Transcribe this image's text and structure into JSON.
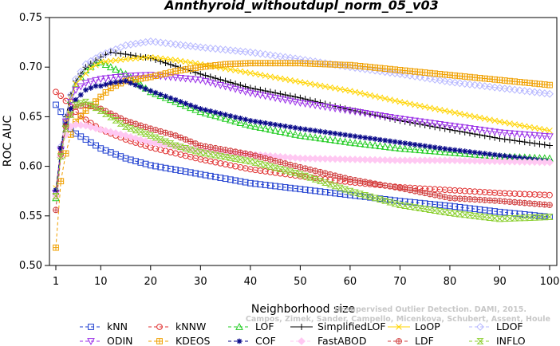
{
  "chart_data": {
    "type": "line",
    "title": "Annthyroid_withoutdupl_norm_05_v03",
    "xlabel": "Neighborhood size",
    "ylabel": "ROC AUC",
    "xlim": [
      1,
      100
    ],
    "ylim": [
      0.5,
      0.75
    ],
    "x_ticks": [
      1,
      10,
      20,
      30,
      40,
      50,
      60,
      70,
      80,
      90,
      100
    ],
    "y_ticks": [
      "0.50",
      "0.55",
      "0.60",
      "0.65",
      "0.70",
      "0.75"
    ],
    "grid": false,
    "legend_position": "bottom",
    "watermark": [
      "Unsupervised Outlier Detection. DAMI, 2015.",
      "Campos, Zimek, Sander, Campello, Micenkova, Schubert, Assent, Houle"
    ],
    "series": [
      {
        "name": "kNN",
        "color": "#1f3fd0",
        "marker": "square",
        "dashed": true,
        "anchors": [
          [
            1,
            0.662
          ],
          [
            2,
            0.655
          ],
          [
            3,
            0.645
          ],
          [
            4,
            0.638
          ],
          [
            5,
            0.633
          ],
          [
            7,
            0.627
          ],
          [
            10,
            0.618
          ],
          [
            15,
            0.608
          ],
          [
            20,
            0.601
          ],
          [
            30,
            0.592
          ],
          [
            40,
            0.583
          ],
          [
            50,
            0.577
          ],
          [
            60,
            0.571
          ],
          [
            70,
            0.565
          ],
          [
            80,
            0.56
          ],
          [
            90,
            0.554
          ],
          [
            100,
            0.549
          ]
        ]
      },
      {
        "name": "kNNW",
        "color": "#e03030",
        "marker": "circle",
        "dashed": true,
        "anchors": [
          [
            1,
            0.675
          ],
          [
            2,
            0.671
          ],
          [
            3,
            0.666
          ],
          [
            4,
            0.66
          ],
          [
            5,
            0.655
          ],
          [
            7,
            0.647
          ],
          [
            10,
            0.637
          ],
          [
            15,
            0.627
          ],
          [
            20,
            0.619
          ],
          [
            30,
            0.607
          ],
          [
            40,
            0.597
          ],
          [
            50,
            0.59
          ],
          [
            60,
            0.584
          ],
          [
            70,
            0.579
          ],
          [
            80,
            0.576
          ],
          [
            90,
            0.573
          ],
          [
            100,
            0.571
          ]
        ]
      },
      {
        "name": "LOF",
        "color": "#22cc22",
        "marker": "triangle-up",
        "dashed": true,
        "anchors": [
          [
            1,
            0.568
          ],
          [
            2,
            0.612
          ],
          [
            3,
            0.643
          ],
          [
            4,
            0.667
          ],
          [
            5,
            0.683
          ],
          [
            7,
            0.697
          ],
          [
            9,
            0.704
          ],
          [
            10,
            0.705
          ],
          [
            12,
            0.7
          ],
          [
            15,
            0.693
          ],
          [
            20,
            0.675
          ],
          [
            25,
            0.665
          ],
          [
            30,
            0.655
          ],
          [
            40,
            0.641
          ],
          [
            50,
            0.631
          ],
          [
            60,
            0.624
          ],
          [
            70,
            0.618
          ],
          [
            80,
            0.614
          ],
          [
            90,
            0.61
          ],
          [
            100,
            0.608
          ]
        ]
      },
      {
        "name": "SimplifiedLOF",
        "color": "#000000",
        "marker": "plus",
        "dashed": false,
        "anchors": [
          [
            1,
            0.572
          ],
          [
            2,
            0.62
          ],
          [
            3,
            0.65
          ],
          [
            4,
            0.672
          ],
          [
            5,
            0.686
          ],
          [
            7,
            0.7
          ],
          [
            10,
            0.71
          ],
          [
            12,
            0.715
          ],
          [
            15,
            0.713
          ],
          [
            20,
            0.709
          ],
          [
            25,
            0.701
          ],
          [
            30,
            0.693
          ],
          [
            40,
            0.679
          ],
          [
            50,
            0.669
          ],
          [
            60,
            0.657
          ],
          [
            70,
            0.646
          ],
          [
            80,
            0.637
          ],
          [
            90,
            0.628
          ],
          [
            100,
            0.621
          ]
        ]
      },
      {
        "name": "LoOP",
        "color": "#ffd400",
        "marker": "x",
        "dashed": false,
        "anchors": [
          [
            1,
            0.578
          ],
          [
            2,
            0.617
          ],
          [
            3,
            0.645
          ],
          [
            4,
            0.668
          ],
          [
            5,
            0.683
          ],
          [
            8,
            0.699
          ],
          [
            10,
            0.705
          ],
          [
            15,
            0.708
          ],
          [
            20,
            0.71
          ],
          [
            25,
            0.707
          ],
          [
            30,
            0.703
          ],
          [
            40,
            0.694
          ],
          [
            50,
            0.685
          ],
          [
            60,
            0.676
          ],
          [
            70,
            0.665
          ],
          [
            80,
            0.655
          ],
          [
            90,
            0.645
          ],
          [
            100,
            0.636
          ]
        ]
      },
      {
        "name": "LDOF",
        "color": "#b7b8ff",
        "marker": "diamond",
        "dashed": true,
        "anchors": [
          [
            1,
            0.575
          ],
          [
            2,
            0.62
          ],
          [
            3,
            0.65
          ],
          [
            4,
            0.672
          ],
          [
            5,
            0.688
          ],
          [
            7,
            0.703
          ],
          [
            10,
            0.712
          ],
          [
            15,
            0.722
          ],
          [
            20,
            0.726
          ],
          [
            30,
            0.72
          ],
          [
            40,
            0.715
          ],
          [
            50,
            0.708
          ],
          [
            60,
            0.7
          ],
          [
            70,
            0.693
          ],
          [
            80,
            0.685
          ],
          [
            90,
            0.679
          ],
          [
            100,
            0.673
          ]
        ]
      },
      {
        "name": "ODIN",
        "color": "#9b30e8",
        "marker": "triangle-down",
        "dashed": true,
        "anchors": [
          [
            1,
            0.573
          ],
          [
            2,
            0.616
          ],
          [
            3,
            0.645
          ],
          [
            4,
            0.665
          ],
          [
            5,
            0.677
          ],
          [
            7,
            0.684
          ],
          [
            10,
            0.688
          ],
          [
            15,
            0.691
          ],
          [
            20,
            0.692
          ],
          [
            30,
            0.687
          ],
          [
            40,
            0.674
          ],
          [
            50,
            0.664
          ],
          [
            60,
            0.656
          ],
          [
            70,
            0.648
          ],
          [
            80,
            0.641
          ],
          [
            90,
            0.634
          ],
          [
            100,
            0.63
          ]
        ]
      },
      {
        "name": "KDEOS",
        "color": "#f0a000",
        "marker": "square-cross",
        "dashed": true,
        "anchors": [
          [
            1,
            0.518
          ],
          [
            2,
            0.585
          ],
          [
            3,
            0.613
          ],
          [
            4,
            0.632
          ],
          [
            5,
            0.645
          ],
          [
            7,
            0.656
          ],
          [
            10,
            0.67
          ],
          [
            12,
            0.679
          ],
          [
            15,
            0.686
          ],
          [
            20,
            0.69
          ],
          [
            25,
            0.696
          ],
          [
            30,
            0.7
          ],
          [
            35,
            0.703
          ],
          [
            40,
            0.704
          ],
          [
            50,
            0.704
          ],
          [
            60,
            0.702
          ],
          [
            70,
            0.697
          ],
          [
            80,
            0.692
          ],
          [
            90,
            0.687
          ],
          [
            100,
            0.682
          ]
        ]
      },
      {
        "name": "COF",
        "color": "#0a0a8a",
        "marker": "asterisk",
        "dashed": true,
        "anchors": [
          [
            1,
            0.576
          ],
          [
            2,
            0.618
          ],
          [
            3,
            0.642
          ],
          [
            4,
            0.658
          ],
          [
            5,
            0.667
          ],
          [
            7,
            0.677
          ],
          [
            9,
            0.681
          ],
          [
            10,
            0.681
          ],
          [
            12,
            0.684
          ],
          [
            15,
            0.686
          ],
          [
            20,
            0.676
          ],
          [
            25,
            0.667
          ],
          [
            30,
            0.658
          ],
          [
            40,
            0.646
          ],
          [
            50,
            0.638
          ],
          [
            60,
            0.631
          ],
          [
            70,
            0.624
          ],
          [
            80,
            0.617
          ],
          [
            90,
            0.611
          ],
          [
            100,
            0.605
          ]
        ]
      },
      {
        "name": "FastABOD",
        "color": "#ffc8f2",
        "marker": "diamond-filled",
        "dashed": true,
        "anchors": [
          [
            1,
            0.57
          ],
          [
            2,
            0.61
          ],
          [
            3,
            0.632
          ],
          [
            4,
            0.64
          ],
          [
            5,
            0.642
          ],
          [
            7,
            0.641
          ],
          [
            10,
            0.637
          ],
          [
            15,
            0.631
          ],
          [
            20,
            0.624
          ],
          [
            30,
            0.616
          ],
          [
            40,
            0.612
          ],
          [
            50,
            0.608
          ],
          [
            60,
            0.607
          ],
          [
            70,
            0.606
          ],
          [
            80,
            0.606
          ],
          [
            90,
            0.605
          ],
          [
            100,
            0.604
          ]
        ]
      },
      {
        "name": "LDF",
        "color": "#d04040",
        "marker": "circle-plus",
        "dashed": true,
        "anchors": [
          [
            1,
            0.556
          ],
          [
            2,
            0.612
          ],
          [
            3,
            0.64
          ],
          [
            4,
            0.652
          ],
          [
            5,
            0.66
          ],
          [
            7,
            0.662
          ],
          [
            10,
            0.658
          ],
          [
            15,
            0.646
          ],
          [
            20,
            0.638
          ],
          [
            25,
            0.631
          ],
          [
            30,
            0.621
          ],
          [
            40,
            0.612
          ],
          [
            50,
            0.599
          ],
          [
            60,
            0.587
          ],
          [
            70,
            0.578
          ],
          [
            80,
            0.568
          ],
          [
            90,
            0.565
          ],
          [
            100,
            0.561
          ]
        ]
      },
      {
        "name": "INFLO",
        "color": "#8ccf30",
        "marker": "hourglass",
        "dashed": true,
        "anchors": [
          [
            1,
            0.57
          ],
          [
            2,
            0.61
          ],
          [
            3,
            0.638
          ],
          [
            4,
            0.652
          ],
          [
            5,
            0.662
          ],
          [
            7,
            0.665
          ],
          [
            10,
            0.656
          ],
          [
            15,
            0.64
          ],
          [
            20,
            0.631
          ],
          [
            25,
            0.621
          ],
          [
            30,
            0.614
          ],
          [
            40,
            0.605
          ],
          [
            50,
            0.592
          ],
          [
            60,
            0.575
          ],
          [
            70,
            0.561
          ],
          [
            80,
            0.553
          ],
          [
            90,
            0.547
          ],
          [
            100,
            0.549
          ]
        ]
      }
    ]
  }
}
